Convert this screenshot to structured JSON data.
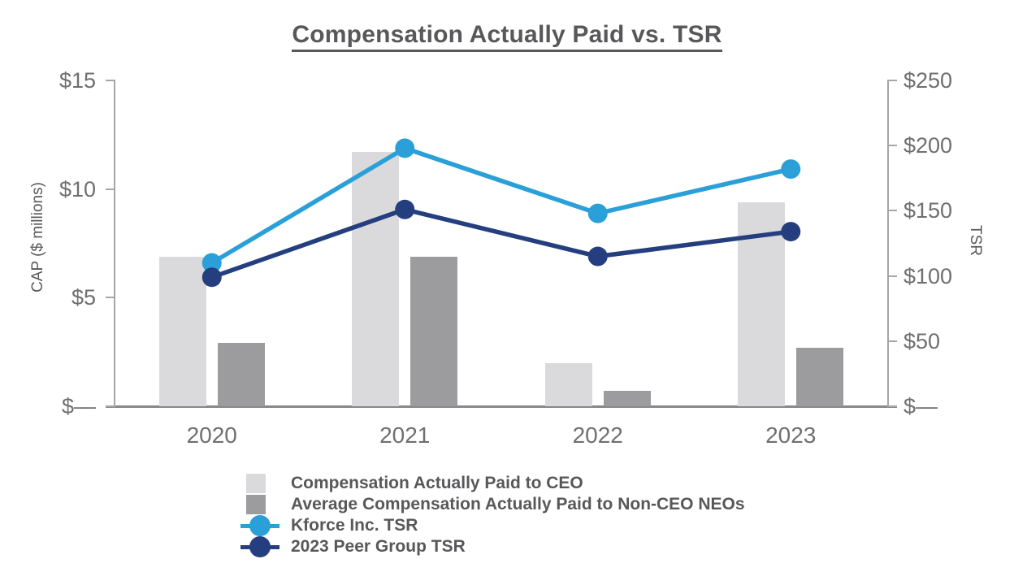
{
  "title": "Compensation Actually Paid vs. TSR",
  "colors": {
    "ceo_bar": "#DADADC",
    "neo_bar": "#9C9C9E",
    "kforce_line": "#2BA0D8",
    "peer_line": "#243E7F",
    "axis": "#A6A6A9",
    "baseline": "#88888B",
    "tick_text": "#6F6F71",
    "title_text": "#58585A"
  },
  "chart_data": {
    "type": "combo-bar-line",
    "title": "Compensation Actually Paid vs. TSR",
    "categories": [
      "2020",
      "2021",
      "2022",
      "2023"
    ],
    "bar_series": [
      {
        "name": "Compensation Actually Paid to CEO",
        "axis": "left",
        "color": "#DADADC",
        "values": [
          6.9,
          11.7,
          2.0,
          9.4
        ]
      },
      {
        "name": "Average Compensation Actually Paid to Non-CEO NEOs",
        "axis": "left",
        "color": "#9C9C9E",
        "values": [
          2.9,
          6.9,
          0.7,
          2.7
        ]
      }
    ],
    "line_series": [
      {
        "name": "Kforce Inc. TSR",
        "axis": "right",
        "color": "#2BA0D8",
        "values": [
          110,
          198,
          148,
          182
        ]
      },
      {
        "name": "2023 Peer Group TSR",
        "axis": "right",
        "color": "#243E7F",
        "values": [
          99,
          151,
          115,
          134
        ]
      }
    ],
    "left_axis": {
      "label": "CAP ($ millions)",
      "range": [
        0,
        15
      ],
      "ticks": [
        {
          "label": "$15",
          "value": 15
        },
        {
          "label": "$10",
          "value": 10
        },
        {
          "label": "$5",
          "value": 5
        },
        {
          "label": "$—",
          "value": 0
        }
      ]
    },
    "right_axis": {
      "label": "TSR",
      "range": [
        0,
        250
      ],
      "ticks": [
        {
          "label": "$250",
          "value": 250
        },
        {
          "label": "$200",
          "value": 200
        },
        {
          "label": "$150",
          "value": 150
        },
        {
          "label": "$100",
          "value": 100
        },
        {
          "label": "$50",
          "value": 50
        },
        {
          "label": "$—",
          "value": 0
        }
      ]
    },
    "legend": [
      {
        "label": "Compensation Actually Paid to CEO",
        "swatch": "square",
        "color": "#DADADC"
      },
      {
        "label": "Average Compensation Actually Paid to Non-CEO NEOs",
        "swatch": "square",
        "color": "#9C9C9E"
      },
      {
        "label": "Kforce Inc. TSR",
        "swatch": "line-dot",
        "color": "#2BA0D8"
      },
      {
        "label": "2023 Peer Group TSR",
        "swatch": "line-dot",
        "color": "#243E7F"
      }
    ],
    "legend_position": "bottom-left",
    "grid": false
  }
}
